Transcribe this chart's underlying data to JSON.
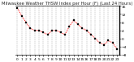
{
  "title": "Milwaukee Weather THSW Index per Hour (F) (Last 24 Hours)",
  "hours": [
    0,
    1,
    2,
    3,
    4,
    5,
    6,
    7,
    8,
    9,
    10,
    11,
    12,
    13,
    14,
    15,
    16,
    17,
    18,
    19,
    20,
    21,
    22,
    23
  ],
  "values": [
    15,
    11,
    8,
    5,
    4,
    4,
    3,
    2,
    4,
    4,
    3,
    2,
    6,
    9,
    7,
    5,
    4,
    2,
    0,
    -2,
    -3,
    -1,
    -2,
    -5
  ],
  "line_color": "#ff0000",
  "marker_color": "#000000",
  "bg_color": "#ffffff",
  "plot_bg": "#ffffff",
  "grid_color": "#888888",
  "ylim": [
    -8,
    16
  ],
  "yticks": [
    -8,
    -4,
    0,
    4,
    8,
    12,
    16
  ],
  "title_fontsize": 3.8,
  "tick_fontsize": 3.2,
  "line_width": 0.7,
  "marker_size": 1.8
}
